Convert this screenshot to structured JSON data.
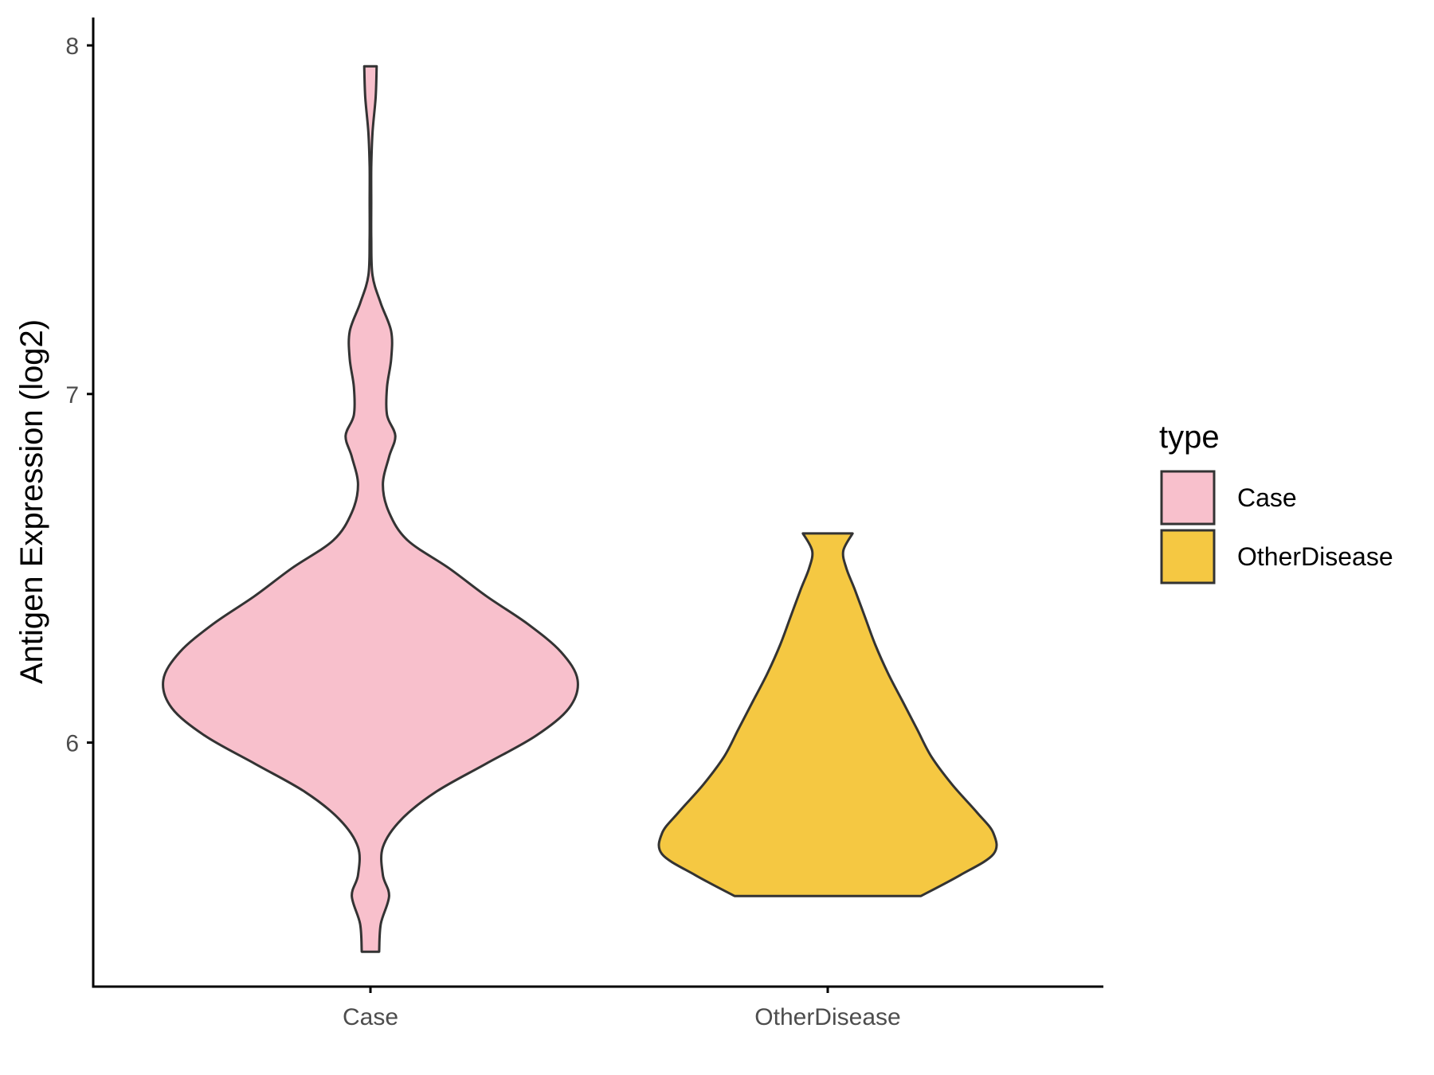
{
  "chart_data": {
    "type": "violin",
    "title": "",
    "xlabel": "",
    "ylabel": "Antigen Expression (log2)",
    "ylim": [
      5.3,
      8.08
    ],
    "yticks": [
      6,
      7,
      8
    ],
    "grid": false,
    "legend_position": "right",
    "legend_title": "type",
    "categories": [
      "Case",
      "OtherDisease"
    ],
    "series": [
      {
        "name": "Case",
        "color": "#F8C0CC",
        "y_range": [
          5.4,
          7.94
        ],
        "density": [
          [
            5.4,
            0.042
          ],
          [
            5.48,
            0.05
          ],
          [
            5.56,
            0.09
          ],
          [
            5.62,
            0.06
          ],
          [
            5.7,
            0.06
          ],
          [
            5.78,
            0.15
          ],
          [
            5.86,
            0.32
          ],
          [
            5.94,
            0.56
          ],
          [
            6.02,
            0.8
          ],
          [
            6.1,
            0.96
          ],
          [
            6.18,
            1.0
          ],
          [
            6.26,
            0.92
          ],
          [
            6.34,
            0.76
          ],
          [
            6.42,
            0.56
          ],
          [
            6.5,
            0.38
          ],
          [
            6.58,
            0.18
          ],
          [
            6.66,
            0.09
          ],
          [
            6.74,
            0.06
          ],
          [
            6.82,
            0.09
          ],
          [
            6.88,
            0.12
          ],
          [
            6.94,
            0.08
          ],
          [
            7.02,
            0.08
          ],
          [
            7.1,
            0.1
          ],
          [
            7.18,
            0.1
          ],
          [
            7.26,
            0.05
          ],
          [
            7.34,
            0.01
          ],
          [
            7.45,
            0.004
          ],
          [
            7.55,
            0.004
          ],
          [
            7.65,
            0.004
          ],
          [
            7.75,
            0.01
          ],
          [
            7.85,
            0.025
          ],
          [
            7.94,
            0.03
          ]
        ]
      },
      {
        "name": "OtherDisease",
        "color": "#F5C842",
        "y_range": [
          5.56,
          6.6
        ],
        "density": [
          [
            5.56,
            0.45
          ],
          [
            5.62,
            0.64
          ],
          [
            5.68,
            0.8
          ],
          [
            5.74,
            0.8
          ],
          [
            5.8,
            0.72
          ],
          [
            5.88,
            0.6
          ],
          [
            5.96,
            0.5
          ],
          [
            6.04,
            0.43
          ],
          [
            6.12,
            0.36
          ],
          [
            6.2,
            0.29
          ],
          [
            6.28,
            0.23
          ],
          [
            6.36,
            0.18
          ],
          [
            6.44,
            0.13
          ],
          [
            6.5,
            0.09
          ],
          [
            6.55,
            0.075
          ],
          [
            6.6,
            0.12
          ]
        ]
      }
    ]
  }
}
